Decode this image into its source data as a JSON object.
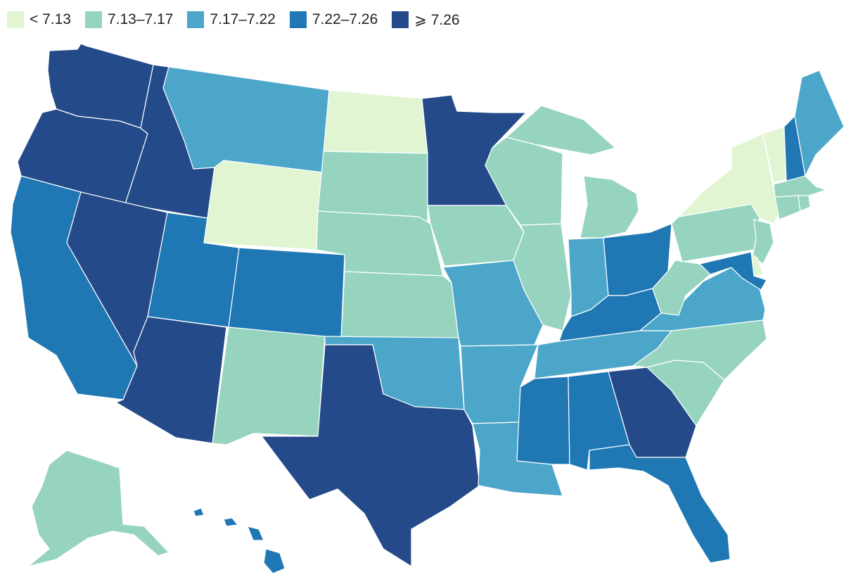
{
  "legend": [
    {
      "key": "c1",
      "label": "< 7.13",
      "color": "#e1f5d2"
    },
    {
      "key": "c2",
      "label": "7.13–7.17",
      "color": "#96d4c0"
    },
    {
      "key": "c3",
      "label": "7.17–7.22",
      "color": "#4ba6ca"
    },
    {
      "key": "c4",
      "label": "7.22–7.26",
      "color": "#1f77b4"
    },
    {
      "key": "c5",
      "label": "⩾ 7.26",
      "color": "#244a8a"
    }
  ],
  "states": [
    {
      "id": "WA",
      "class": "c5"
    },
    {
      "id": "OR",
      "class": "c5"
    },
    {
      "id": "CA",
      "class": "c4"
    },
    {
      "id": "ID",
      "class": "c5"
    },
    {
      "id": "NV",
      "class": "c5"
    },
    {
      "id": "AZ",
      "class": "c5"
    },
    {
      "id": "UT",
      "class": "c4"
    },
    {
      "id": "MT",
      "class": "c3"
    },
    {
      "id": "WY",
      "class": "c1"
    },
    {
      "id": "CO",
      "class": "c4"
    },
    {
      "id": "NM",
      "class": "c2"
    },
    {
      "id": "ND",
      "class": "c1"
    },
    {
      "id": "SD",
      "class": "c2"
    },
    {
      "id": "NE",
      "class": "c2"
    },
    {
      "id": "KS",
      "class": "c2"
    },
    {
      "id": "OK",
      "class": "c3"
    },
    {
      "id": "TX",
      "class": "c5"
    },
    {
      "id": "MN",
      "class": "c5"
    },
    {
      "id": "IA",
      "class": "c2"
    },
    {
      "id": "MO",
      "class": "c3"
    },
    {
      "id": "AR",
      "class": "c3"
    },
    {
      "id": "LA",
      "class": "c3"
    },
    {
      "id": "WI",
      "class": "c2"
    },
    {
      "id": "IL",
      "class": "c2"
    },
    {
      "id": "MI",
      "class": "c2"
    },
    {
      "id": "IN",
      "class": "c3"
    },
    {
      "id": "OH",
      "class": "c4"
    },
    {
      "id": "KY",
      "class": "c4"
    },
    {
      "id": "TN",
      "class": "c3"
    },
    {
      "id": "MS",
      "class": "c4"
    },
    {
      "id": "AL",
      "class": "c4"
    },
    {
      "id": "GA",
      "class": "c5"
    },
    {
      "id": "FL",
      "class": "c4"
    },
    {
      "id": "SC",
      "class": "c2"
    },
    {
      "id": "NC",
      "class": "c2"
    },
    {
      "id": "VA",
      "class": "c3"
    },
    {
      "id": "WV",
      "class": "c2"
    },
    {
      "id": "PA",
      "class": "c2"
    },
    {
      "id": "NY",
      "class": "c1"
    },
    {
      "id": "VT",
      "class": "c1"
    },
    {
      "id": "NH",
      "class": "c4"
    },
    {
      "id": "ME",
      "class": "c3"
    },
    {
      "id": "MA",
      "class": "c2"
    },
    {
      "id": "CT",
      "class": "c2"
    },
    {
      "id": "RI",
      "class": "c2"
    },
    {
      "id": "NJ",
      "class": "c2"
    },
    {
      "id": "DE",
      "class": "c1"
    },
    {
      "id": "MD",
      "class": "c4"
    },
    {
      "id": "AK",
      "class": "c2"
    },
    {
      "id": "HI",
      "class": "c4"
    }
  ]
}
